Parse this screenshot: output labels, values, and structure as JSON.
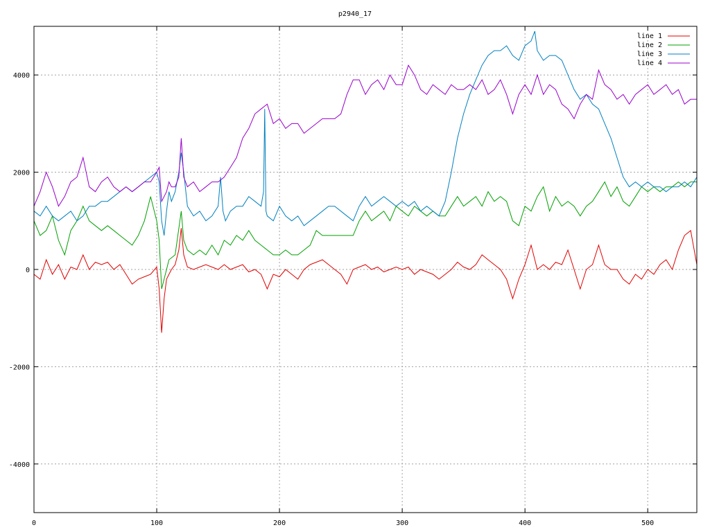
{
  "chart_data": {
    "type": "line",
    "title": "p2940_17",
    "xlabel": "",
    "ylabel": "",
    "xlim": [
      0,
      540
    ],
    "ylim": [
      -5000,
      5000
    ],
    "x_ticks": [
      0,
      100,
      200,
      300,
      400,
      500
    ],
    "y_ticks": [
      -4000,
      -2000,
      0,
      2000,
      4000
    ],
    "x_tick_labels": [
      "0",
      "100",
      "200",
      "300",
      "400",
      "500"
    ],
    "y_tick_labels": [
      "-4000",
      "-2000",
      "0",
      "2000",
      "4000"
    ],
    "grid": true,
    "legend_position": "top-right",
    "series": [
      {
        "name": "line 1",
        "color": "#e00000",
        "x": [
          0,
          5,
          10,
          15,
          20,
          25,
          30,
          35,
          40,
          45,
          50,
          55,
          60,
          65,
          70,
          75,
          80,
          85,
          90,
          95,
          100,
          102,
          104,
          106,
          108,
          110,
          112,
          115,
          118,
          120,
          122,
          125,
          130,
          135,
          140,
          145,
          150,
          155,
          160,
          165,
          170,
          175,
          180,
          185,
          190,
          195,
          200,
          205,
          210,
          215,
          220,
          225,
          230,
          235,
          240,
          245,
          250,
          255,
          260,
          265,
          270,
          275,
          280,
          285,
          290,
          295,
          300,
          305,
          310,
          315,
          320,
          325,
          330,
          335,
          340,
          345,
          350,
          355,
          360,
          365,
          370,
          375,
          380,
          385,
          390,
          395,
          400,
          405,
          410,
          415,
          420,
          425,
          430,
          435,
          440,
          445,
          450,
          455,
          460,
          465,
          470,
          475,
          480,
          485,
          490,
          495,
          500,
          505,
          510,
          515,
          520,
          525,
          530,
          535,
          540
        ],
        "y": [
          -100,
          -200,
          200,
          -100,
          100,
          -200,
          50,
          0,
          300,
          0,
          150,
          100,
          150,
          0,
          100,
          -100,
          -300,
          -200,
          -150,
          -100,
          50,
          -400,
          -1300,
          -600,
          -200,
          -100,
          0,
          100,
          400,
          850,
          300,
          50,
          0,
          50,
          100,
          50,
          0,
          100,
          0,
          50,
          100,
          -50,
          0,
          -100,
          -400,
          -100,
          -150,
          0,
          -100,
          -200,
          0,
          100,
          150,
          200,
          100,
          0,
          -100,
          -300,
          0,
          50,
          100,
          0,
          50,
          -50,
          0,
          50,
          0,
          50,
          -100,
          0,
          -50,
          -100,
          -200,
          -100,
          0,
          150,
          50,
          0,
          100,
          300,
          200,
          100,
          0,
          -200,
          -600,
          -200,
          100,
          500,
          0,
          100,
          0,
          150,
          100,
          400,
          0,
          -400,
          0,
          100,
          500,
          100,
          0,
          0,
          -200,
          -300,
          -100,
          -200,
          0,
          -100,
          100,
          200,
          0,
          400,
          700,
          800,
          100
        ]
      },
      {
        "name": "line 2",
        "color": "#00a000",
        "x": [
          0,
          5,
          10,
          15,
          20,
          25,
          30,
          35,
          40,
          45,
          50,
          55,
          60,
          65,
          70,
          75,
          80,
          85,
          90,
          95,
          100,
          102,
          104,
          106,
          108,
          110,
          115,
          120,
          122,
          125,
          130,
          135,
          140,
          145,
          150,
          155,
          160,
          165,
          170,
          175,
          180,
          185,
          190,
          195,
          200,
          205,
          210,
          215,
          220,
          225,
          230,
          235,
          240,
          245,
          250,
          255,
          260,
          265,
          270,
          275,
          280,
          285,
          290,
          295,
          300,
          305,
          310,
          315,
          320,
          325,
          330,
          335,
          340,
          345,
          350,
          355,
          360,
          365,
          370,
          375,
          380,
          385,
          390,
          395,
          400,
          405,
          410,
          415,
          420,
          425,
          430,
          435,
          440,
          445,
          450,
          455,
          460,
          465,
          470,
          475,
          480,
          485,
          490,
          495,
          500,
          505,
          510,
          515,
          520,
          525,
          530,
          535,
          540
        ],
        "y": [
          1000,
          700,
          800,
          1100,
          600,
          300,
          800,
          1000,
          1300,
          1000,
          900,
          800,
          900,
          800,
          700,
          600,
          500,
          700,
          1000,
          1500,
          1000,
          600,
          -400,
          -200,
          0,
          200,
          300,
          1200,
          600,
          400,
          300,
          400,
          300,
          500,
          300,
          600,
          500,
          700,
          600,
          800,
          600,
          500,
          400,
          300,
          300,
          400,
          300,
          300,
          400,
          500,
          800,
          700,
          700,
          700,
          700,
          700,
          700,
          1000,
          1200,
          1000,
          1100,
          1200,
          1000,
          1300,
          1200,
          1100,
          1300,
          1200,
          1100,
          1200,
          1100,
          1100,
          1300,
          1500,
          1300,
          1400,
          1500,
          1300,
          1600,
          1400,
          1500,
          1400,
          1000,
          900,
          1300,
          1200,
          1500,
          1700,
          1200,
          1500,
          1300,
          1400,
          1300,
          1100,
          1300,
          1400,
          1600,
          1800,
          1500,
          1700,
          1400,
          1300,
          1500,
          1700,
          1600,
          1700,
          1600,
          1700,
          1700,
          1800,
          1700,
          1800,
          1800
        ]
      },
      {
        "name": "line 3",
        "color": "#0080c0",
        "x": [
          0,
          5,
          10,
          15,
          20,
          25,
          30,
          35,
          40,
          45,
          50,
          55,
          60,
          65,
          70,
          75,
          80,
          85,
          90,
          95,
          100,
          102,
          104,
          106,
          108,
          110,
          112,
          115,
          118,
          120,
          122,
          125,
          130,
          135,
          140,
          145,
          150,
          152,
          154,
          156,
          160,
          165,
          170,
          175,
          180,
          185,
          187,
          188,
          189,
          190,
          195,
          200,
          205,
          210,
          215,
          220,
          225,
          230,
          235,
          240,
          245,
          250,
          255,
          260,
          265,
          270,
          275,
          280,
          285,
          290,
          295,
          300,
          305,
          310,
          315,
          320,
          325,
          330,
          335,
          340,
          345,
          350,
          355,
          360,
          365,
          370,
          375,
          380,
          385,
          390,
          395,
          400,
          405,
          408,
          410,
          415,
          420,
          425,
          430,
          435,
          440,
          445,
          450,
          455,
          460,
          465,
          470,
          475,
          480,
          485,
          490,
          495,
          500,
          505,
          510,
          515,
          520,
          525,
          530,
          535,
          540
        ],
        "y": [
          1200,
          1100,
          1300,
          1100,
          1000,
          1100,
          1200,
          1000,
          1100,
          1300,
          1300,
          1400,
          1400,
          1500,
          1600,
          1700,
          1600,
          1700,
          1800,
          1900,
          2000,
          1800,
          1000,
          700,
          1200,
          1600,
          1400,
          1600,
          2000,
          2400,
          2000,
          1300,
          1100,
          1200,
          1000,
          1100,
          1300,
          1900,
          1200,
          1000,
          1200,
          1300,
          1300,
          1500,
          1400,
          1300,
          1600,
          3300,
          1200,
          1100,
          1000,
          1300,
          1100,
          1000,
          1100,
          900,
          1000,
          1100,
          1200,
          1300,
          1300,
          1200,
          1100,
          1000,
          1300,
          1500,
          1300,
          1400,
          1500,
          1400,
          1300,
          1400,
          1300,
          1400,
          1200,
          1300,
          1200,
          1100,
          1400,
          2000,
          2700,
          3200,
          3600,
          3900,
          4200,
          4400,
          4500,
          4500,
          4600,
          4400,
          4300,
          4600,
          4700,
          4900,
          4500,
          4300,
          4400,
          4400,
          4300,
          4000,
          3700,
          3500,
          3600,
          3400,
          3300,
          3000,
          2700,
          2300,
          1900,
          1700,
          1800,
          1700,
          1800,
          1700,
          1700,
          1600,
          1700,
          1700,
          1800,
          1700,
          1900
        ]
      },
      {
        "name": "line 4",
        "color": "#9900cc",
        "x": [
          0,
          5,
          10,
          15,
          20,
          25,
          30,
          35,
          40,
          45,
          50,
          55,
          60,
          65,
          70,
          75,
          80,
          85,
          90,
          95,
          100,
          102,
          104,
          106,
          108,
          110,
          112,
          115,
          118,
          120,
          122,
          125,
          130,
          135,
          140,
          145,
          150,
          155,
          160,
          165,
          170,
          175,
          180,
          185,
          190,
          195,
          200,
          205,
          210,
          215,
          220,
          225,
          230,
          235,
          240,
          245,
          250,
          255,
          260,
          265,
          270,
          275,
          280,
          285,
          290,
          295,
          300,
          305,
          310,
          315,
          320,
          325,
          330,
          335,
          340,
          345,
          350,
          355,
          360,
          365,
          370,
          375,
          380,
          385,
          390,
          395,
          400,
          405,
          410,
          415,
          420,
          425,
          430,
          435,
          440,
          445,
          450,
          455,
          460,
          465,
          470,
          475,
          480,
          485,
          490,
          495,
          500,
          505,
          510,
          515,
          520,
          525,
          530,
          535,
          540
        ],
        "y": [
          1300,
          1600,
          2000,
          1700,
          1300,
          1500,
          1800,
          1900,
          2300,
          1700,
          1600,
          1800,
          1900,
          1700,
          1600,
          1700,
          1600,
          1700,
          1800,
          1800,
          2000,
          2100,
          1400,
          1500,
          1600,
          1800,
          1700,
          1700,
          1900,
          2700,
          1900,
          1700,
          1800,
          1600,
          1700,
          1800,
          1800,
          1900,
          2100,
          2300,
          2700,
          2900,
          3200,
          3300,
          3400,
          3000,
          3100,
          2900,
          3000,
          3000,
          2800,
          2900,
          3000,
          3100,
          3100,
          3100,
          3200,
          3600,
          3900,
          3900,
          3600,
          3800,
          3900,
          3700,
          4000,
          3800,
          3800,
          4200,
          4000,
          3700,
          3600,
          3800,
          3700,
          3600,
          3800,
          3700,
          3700,
          3800,
          3700,
          3900,
          3600,
          3700,
          3900,
          3600,
          3200,
          3600,
          3800,
          3600,
          4000,
          3600,
          3800,
          3700,
          3400,
          3300,
          3100,
          3400,
          3600,
          3500,
          4100,
          3800,
          3700,
          3500,
          3600,
          3400,
          3600,
          3700,
          3800,
          3600,
          3700,
          3800,
          3600,
          3700,
          3400,
          3500,
          3500
        ]
      }
    ]
  }
}
